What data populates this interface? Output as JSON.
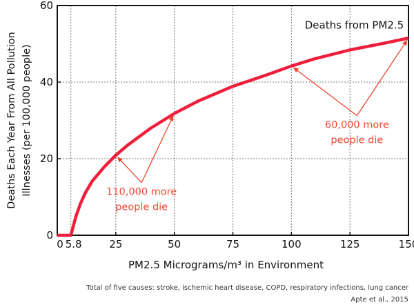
{
  "chart_data": {
    "type": "line",
    "xlabel": "PM2.5 Micrograms/m³ in Environment",
    "ylabel_lines": [
      "Deaths Each Year From All Pollution",
      "Illnesses (per 100,000 people)"
    ],
    "xlim": [
      0,
      150
    ],
    "ylim": [
      0,
      60
    ],
    "x_ticks": [
      {
        "value": 0,
        "label": "0"
      },
      {
        "value": 5.8,
        "label": "5.8"
      },
      {
        "value": 25,
        "label": "25"
      },
      {
        "value": 50,
        "label": "50"
      },
      {
        "value": 75,
        "label": "75"
      },
      {
        "value": 100,
        "label": "100"
      },
      {
        "value": 125,
        "label": "125"
      },
      {
        "value": 150,
        "label": "150"
      }
    ],
    "y_ticks": [
      0,
      20,
      40,
      60
    ],
    "x_gridlines": [
      5.8,
      25,
      50,
      75,
      100,
      125,
      150
    ],
    "y_gridlines": [
      20,
      40,
      60
    ],
    "grid": true,
    "series": [
      {
        "name": "Deaths from PM2.5",
        "color": "#ef1f3c",
        "x": [
          0,
          2,
          4,
          5.8,
          8,
          10,
          12,
          15,
          20,
          25,
          30,
          40,
          50,
          60,
          75,
          90,
          100,
          110,
          125,
          140,
          150
        ],
        "y": [
          0,
          0,
          0,
          0,
          5,
          8.4,
          11.1,
          14.2,
          17.8,
          20.9,
          23.5,
          28.0,
          31.8,
          35.0,
          38.9,
          42.0,
          44.2,
          46.1,
          48.4,
          50.2,
          51.5
        ]
      }
    ],
    "annotations": [
      {
        "text_lines": [
          "110,000 more",
          "people die"
        ],
        "color": "#f0442c",
        "label_at": [
          36,
          10.5
        ],
        "arrows_to": [
          [
            25,
            20.9
          ],
          [
            50,
            31.8
          ]
        ]
      },
      {
        "text_lines": [
          "60,000 more",
          "people die"
        ],
        "color": "#f0442c",
        "label_at": [
          128,
          28
        ],
        "arrows_to": [
          [
            100,
            44.2
          ],
          [
            150,
            51.5
          ]
        ]
      }
    ],
    "footnotes": [
      "Total of five causes: stroke, ischemic heart disease, COPD, respiratory infections, lung cancer",
      "Apte et al., 2015"
    ]
  }
}
